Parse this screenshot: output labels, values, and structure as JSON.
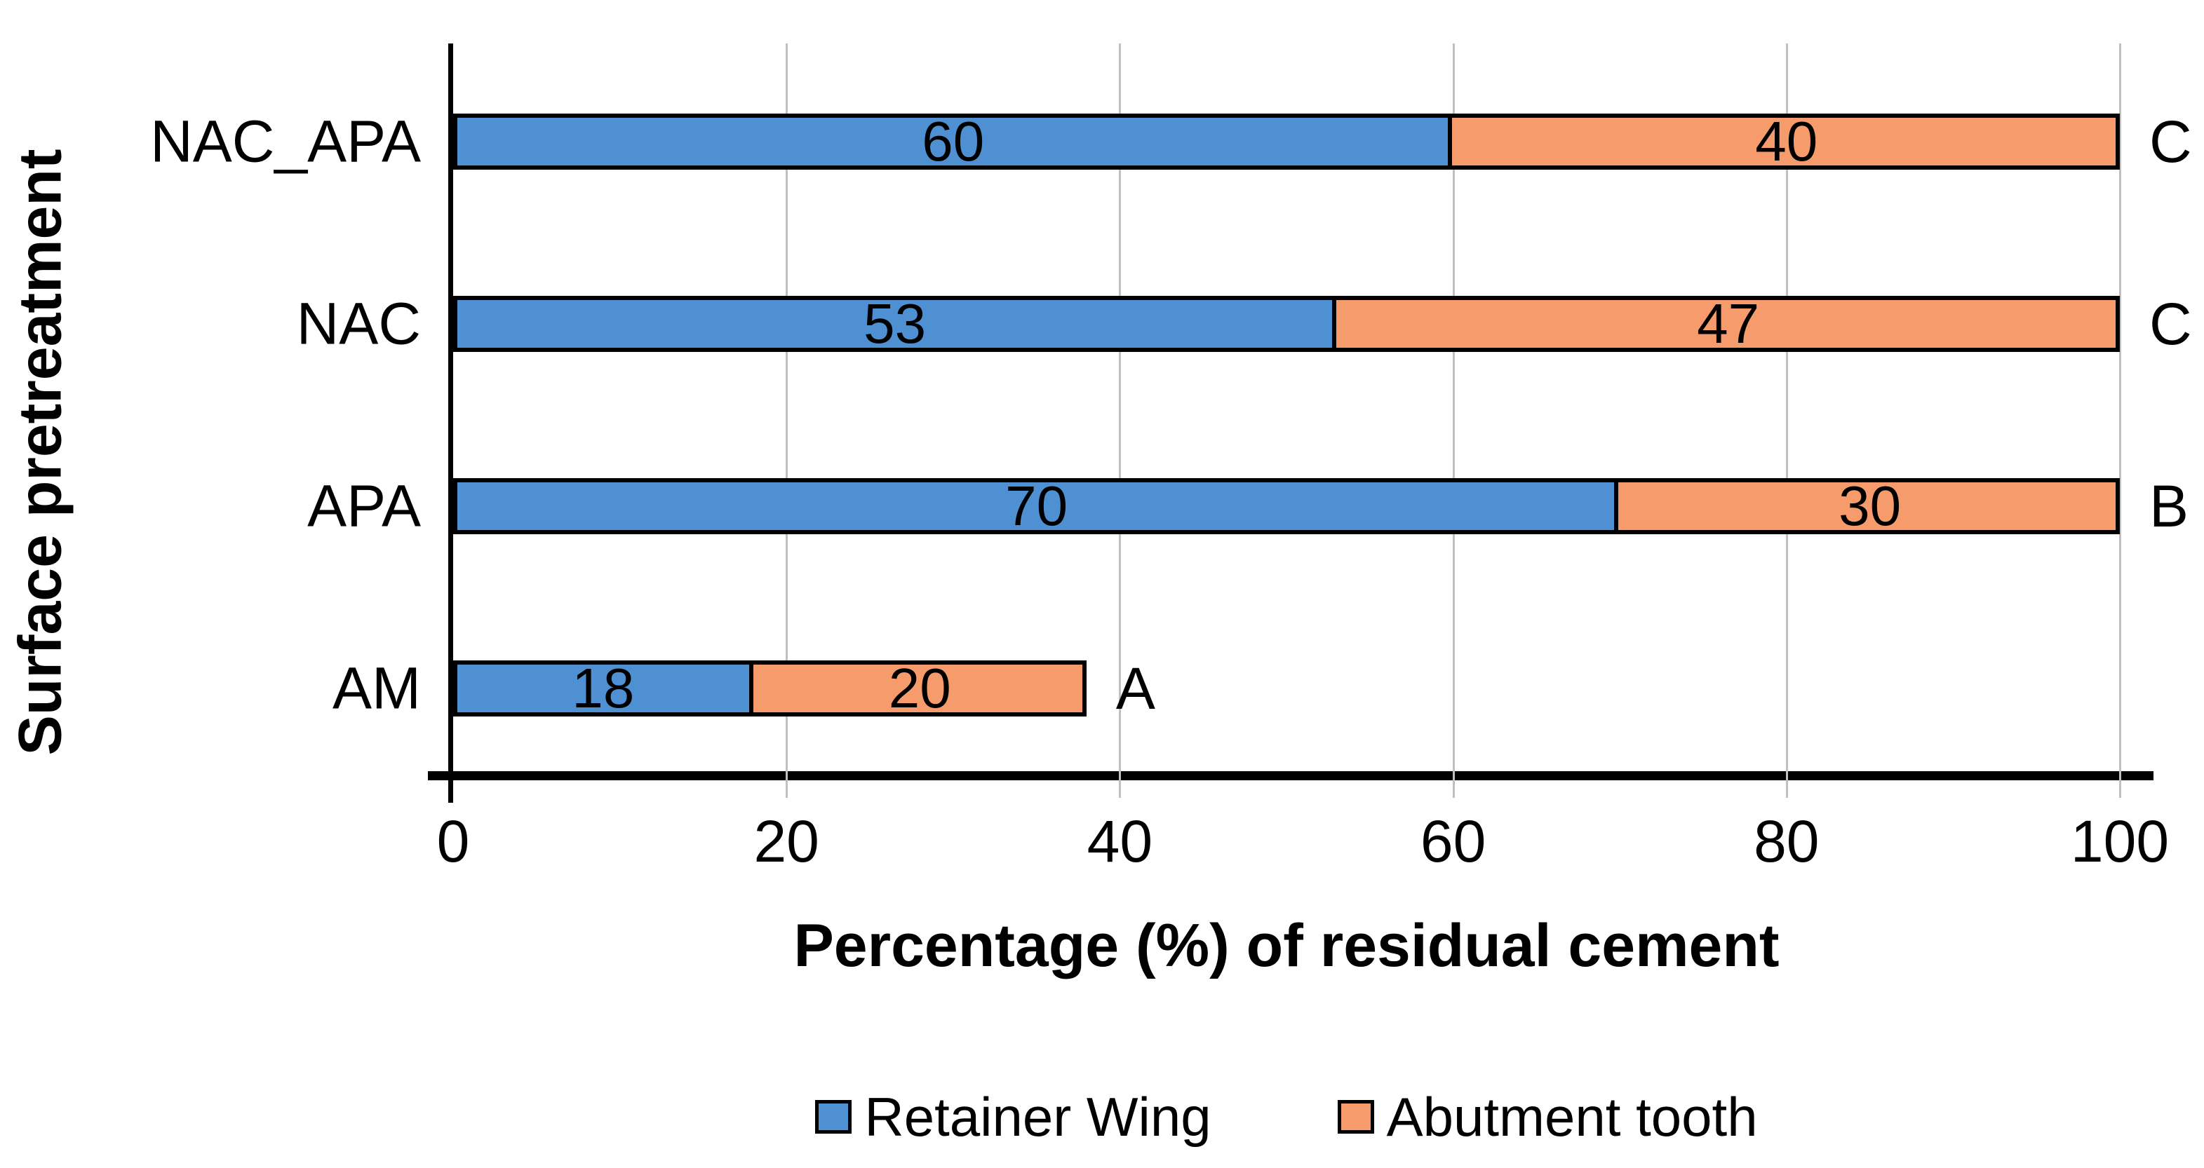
{
  "chart_data": {
    "type": "bar",
    "orientation": "horizontal",
    "stacked": true,
    "categories": [
      "NAC_APA",
      "NAC",
      "APA",
      "AM"
    ],
    "series": [
      {
        "name": "Retainer Wing",
        "color": "#4E90D2",
        "values": [
          60,
          53,
          70,
          18
        ]
      },
      {
        "name": "Abutment tooth",
        "color": "#F59B6C",
        "values": [
          40,
          47,
          30,
          20
        ]
      }
    ],
    "bar_end_letters": [
      "C",
      "C",
      "B",
      "A"
    ],
    "xlabel": "Percentage (%) of residual cement",
    "ylabel": "Surface pretreatment",
    "x_ticks": [
      0,
      20,
      40,
      60,
      80,
      100
    ],
    "xlim": [
      0,
      100
    ],
    "grid": "vertical-only",
    "legend_position": "bottom"
  },
  "colors": {
    "series_blue": "#4E90D2",
    "series_orange": "#F59B6C",
    "bar_border": "#000000",
    "gridline": "#C0C0C0",
    "axis": "#000000",
    "text": "#000000",
    "background": "#ffffff"
  }
}
